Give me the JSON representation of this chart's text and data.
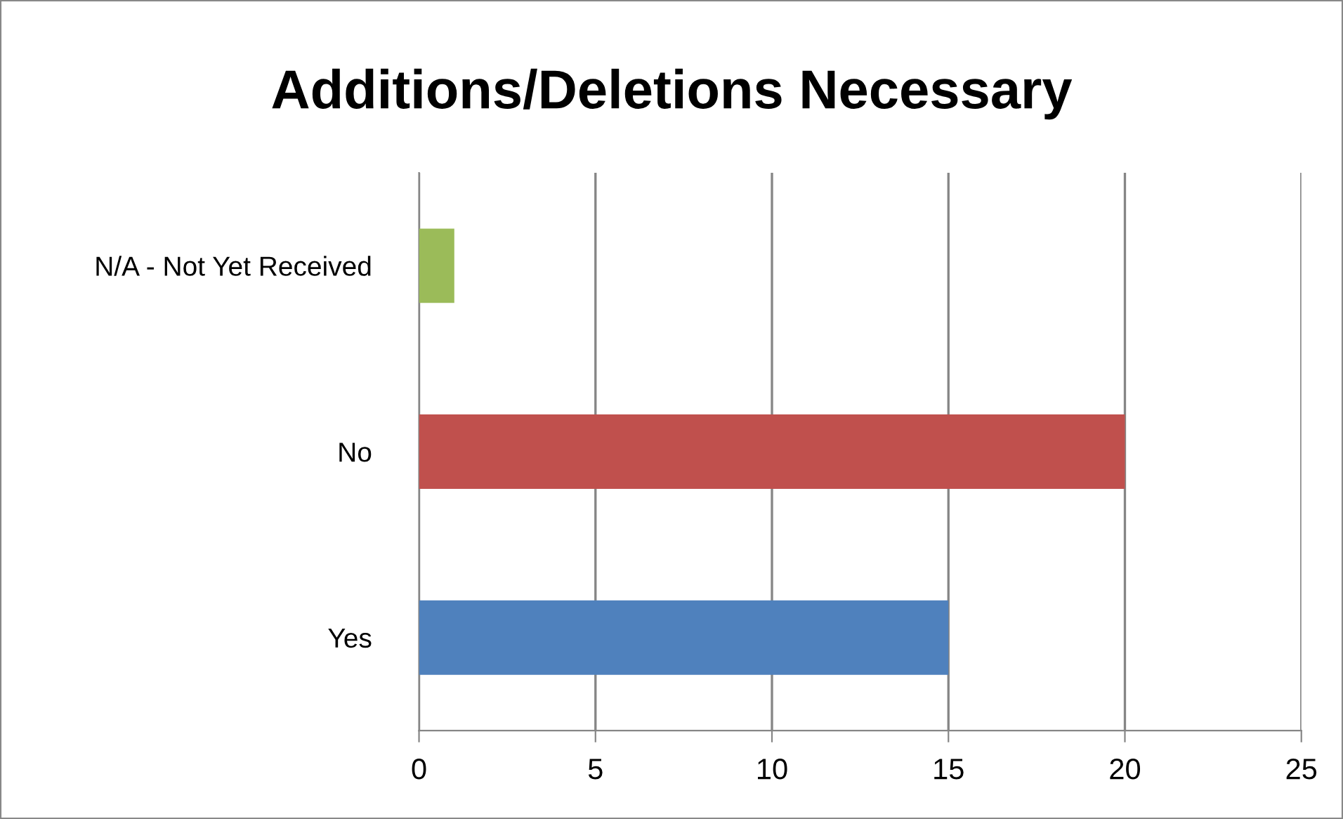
{
  "chart_data": {
    "type": "bar",
    "orientation": "horizontal",
    "title": "Additions/Deletions Necessary",
    "categories": [
      "N/A - Not Yet Received",
      "No",
      "Yes"
    ],
    "values": [
      1,
      20,
      15
    ],
    "colors": [
      "#9bbb59",
      "#c0504d",
      "#4f81bd"
    ],
    "xlim": [
      0,
      25
    ],
    "xticks": [
      0,
      5,
      10,
      15,
      20,
      25
    ],
    "grid": "x",
    "legend": false
  }
}
